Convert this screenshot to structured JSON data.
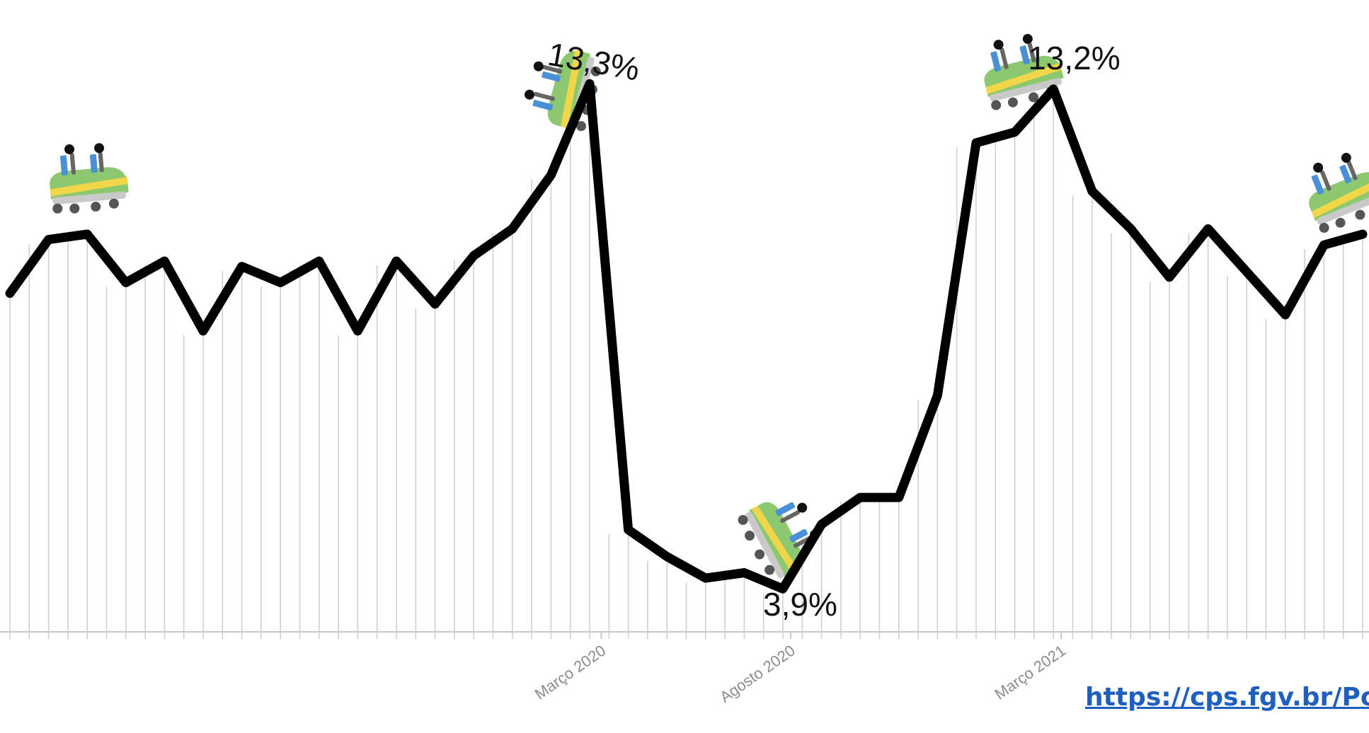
{
  "chart_data": {
    "type": "line",
    "title": "",
    "xlabel": "",
    "ylabel": "",
    "grid": "vertical",
    "series": [
      {
        "values": [
          9.4,
          10.4,
          10.5,
          9.6,
          10.0,
          8.7,
          9.9,
          9.6,
          10.0,
          8.7,
          10.0,
          9.2,
          10.1,
          10.6,
          11.6,
          13.3,
          5.0,
          4.5,
          4.1,
          4.2,
          3.9,
          5.1,
          5.6,
          5.6,
          7.5,
          12.2,
          12.4,
          13.2,
          11.3,
          10.6,
          9.7,
          10.6,
          9.8,
          9.0,
          10.3,
          10.5
        ],
        "marker_labels": [
          "",
          "",
          "",
          "",
          "",
          "",
          "",
          "",
          "",
          "",
          "",
          "",
          "",
          "",
          "",
          "13,3%",
          "",
          "",
          "",
          "",
          "3,9%",
          "",
          "",
          "",
          "",
          "",
          "",
          "13,2%",
          "",
          "",
          "",
          "",
          "",
          "",
          "",
          ""
        ]
      }
    ],
    "tick_labels": [
      "Março 2020",
      "Agosto 2020",
      "Março 2021"
    ],
    "annotations": [
      "13,3%",
      "3,9%",
      "13,2%"
    ],
    "ylim": [
      3.1,
      14.2
    ],
    "colors": {
      "line": "#000000",
      "grid": "#d0d0d0",
      "axis": "#c8c8c8",
      "tick_text": "#8c8c8c",
      "cart_green": "#8cc86e",
      "cart_yellow": "#f2d64a",
      "cart_body": "#c9c9c9",
      "cart_seat": "#4a90d9",
      "wheel": "#444444"
    },
    "icons": [
      "roller-coaster-cart-icon"
    ]
  },
  "source": {
    "link_text": "https://cps.fgv.br/Po"
  }
}
